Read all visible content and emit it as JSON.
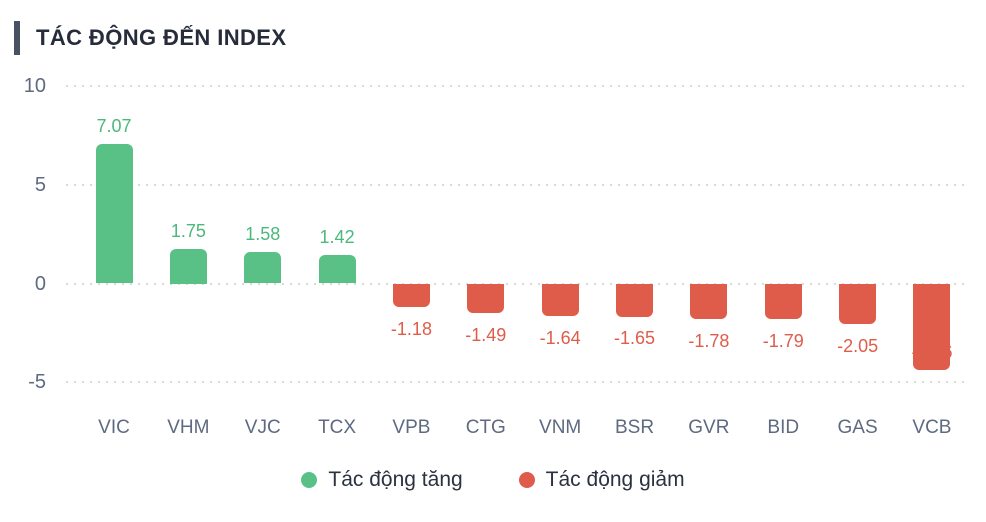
{
  "header": {
    "title": "TÁC ĐỘNG ĐẾN INDEX"
  },
  "colors": {
    "positive": "#59c186",
    "negative": "#df5c4a",
    "positive_label": "#4cb87b",
    "negative_label": "#df5c4a",
    "accent_bar": "#495263",
    "title_text": "#262c3a",
    "axis_text": "#5e6a80",
    "gridline": "#d9d9d9",
    "background": "#ffffff"
  },
  "chart_data": {
    "type": "bar",
    "title": "TÁC ĐỘNG ĐẾN INDEX",
    "categories": [
      "VIC",
      "VHM",
      "VJC",
      "TCX",
      "VPB",
      "CTG",
      "VNM",
      "BSR",
      "GVR",
      "BID",
      "GAS",
      "VCB"
    ],
    "values": [
      7.07,
      1.75,
      1.58,
      1.42,
      -1.18,
      -1.49,
      -1.64,
      -1.65,
      -1.78,
      -1.79,
      -2.05,
      -4.36
    ],
    "value_labels": [
      "7.07",
      "1.75",
      "1.58",
      "1.42",
      "-1.18",
      "-1.49",
      "-1.64",
      "-1.65",
      "-1.78",
      "-1.79",
      "-2.05",
      "-4.36"
    ],
    "xlabel": "",
    "ylabel": "",
    "yticks": [
      10,
      5,
      0,
      -5
    ],
    "ytick_labels": [
      "10",
      "5",
      "0",
      "-5"
    ],
    "ylim": [
      -5,
      10
    ],
    "grid": "horizontal-dotted",
    "bar_colors_rule": "green if positive, red if negative",
    "legend_position": "bottom",
    "legend": [
      {
        "label": "Tác động tăng",
        "color": "#59c186",
        "kind": "positive"
      },
      {
        "label": "Tác động giảm",
        "color": "#df5c4a",
        "kind": "negative"
      }
    ]
  }
}
